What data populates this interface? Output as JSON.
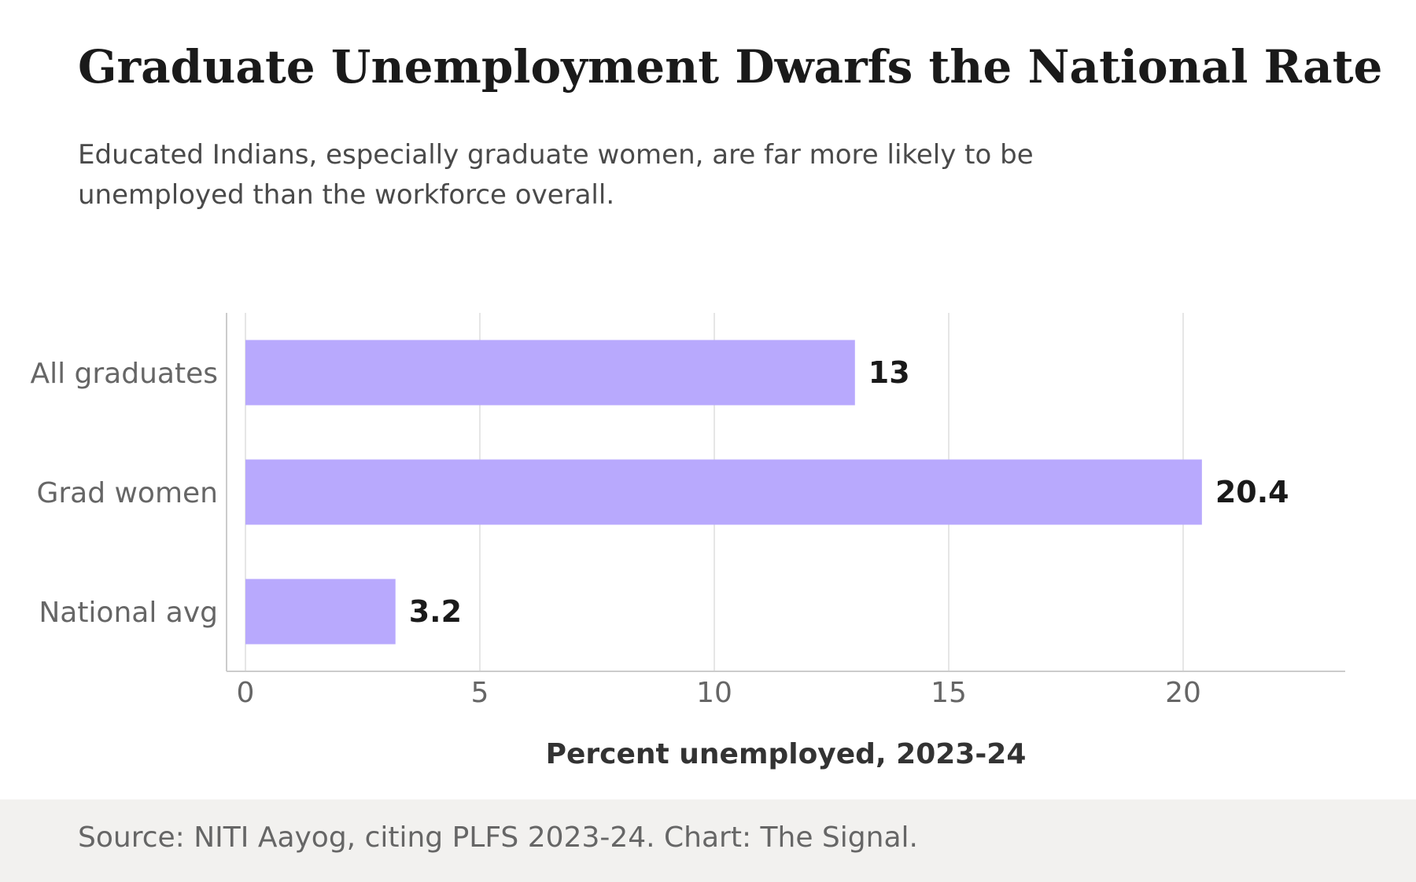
{
  "header": {
    "title": "Graduate Unemployment Dwarfs the National Rate",
    "subtitle": "Educated Indians, especially graduate women, are far more likely to be unemployed than the workforce overall."
  },
  "footer": {
    "source": "Source: NITI Aayog, citing PLFS 2023-24. Chart: The Signal."
  },
  "colors": {
    "bar": "#b8a9fd",
    "grid": "#e6e6e6",
    "axis": "#cccccc",
    "footer_bg": "#f2f1ef"
  },
  "chart_data": {
    "type": "bar",
    "orientation": "horizontal",
    "title": "Graduate Unemployment Dwarfs the National Rate",
    "subtitle": "Educated Indians, especially graduate women, are far more likely to be unemployed than the workforce overall.",
    "categories": [
      "All graduates",
      "Grad women",
      "National avg"
    ],
    "values": [
      13,
      20.4,
      3.2
    ],
    "value_labels": [
      "13",
      "20.4",
      "3.2"
    ],
    "xlabel": "Percent unemployed, 2023-24",
    "ylabel": "",
    "xlim": [
      0,
      23.5
    ],
    "xticks": [
      0,
      5,
      10,
      15,
      20
    ],
    "grid": "vertical",
    "legend": "none"
  }
}
